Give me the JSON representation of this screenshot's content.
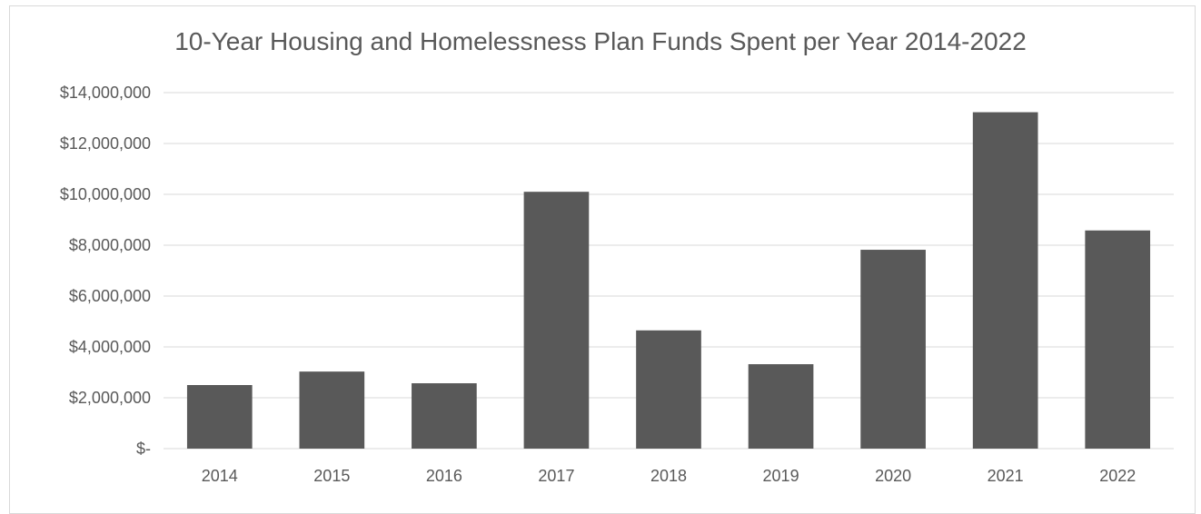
{
  "chart_data": {
    "type": "bar",
    "title": "10-Year Housing and Homelessness Plan Funds Spent per Year 2014-2022",
    "xlabel": "",
    "ylabel": "",
    "categories": [
      "2014",
      "2015",
      "2016",
      "2017",
      "2018",
      "2019",
      "2020",
      "2021",
      "2022"
    ],
    "values": [
      2500000,
      3030000,
      2570000,
      10100000,
      4650000,
      3320000,
      7820000,
      13230000,
      8580000
    ],
    "ylim": [
      0,
      14000000
    ],
    "yticks": [
      0,
      2000000,
      4000000,
      6000000,
      8000000,
      10000000,
      12000000,
      14000000
    ],
    "ytick_labels": [
      "$-",
      "$2,000,000",
      "$4,000,000",
      "$6,000,000",
      "$8,000,000",
      "$10,000,000",
      "$12,000,000",
      "$14,000,000"
    ],
    "grid": true,
    "legend": "none",
    "bar_color": "#595959",
    "grid_color": "#d9d9d9",
    "text_color": "#595959"
  }
}
